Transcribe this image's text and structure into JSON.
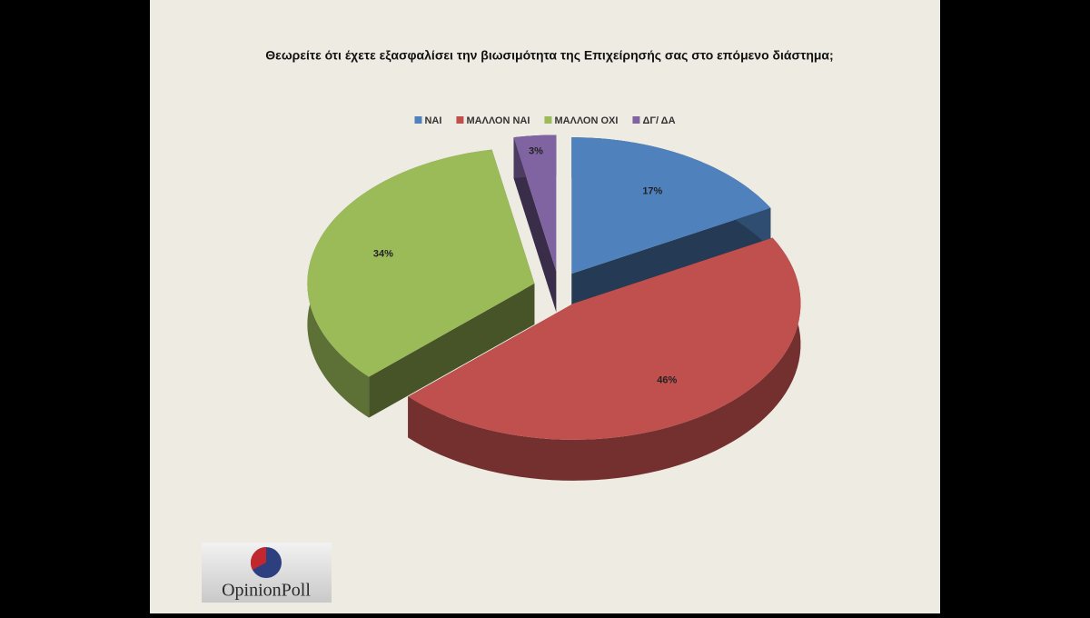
{
  "chart_data": {
    "type": "pie",
    "title": "Θεωρείτε ότι έχετε εξασφαλίσει την βιωσιμότητα της Επιχείρησής σας στο επόμενο διάστημα;",
    "categories": [
      "ΝΑΙ",
      "ΜΑΛΛΟΝ ΝΑΙ",
      "ΜΑΛΛΟΝ ΟΧΙ",
      "ΔΓ/ ΔΑ"
    ],
    "values": [
      17,
      46,
      34,
      3
    ],
    "value_labels": [
      "17%",
      "46%",
      "34%",
      "3%"
    ],
    "colors": [
      "#4f81bd",
      "#c0504d",
      "#9bbb59",
      "#8064a2"
    ],
    "legend": "top"
  },
  "logo": "OpinionPoll"
}
